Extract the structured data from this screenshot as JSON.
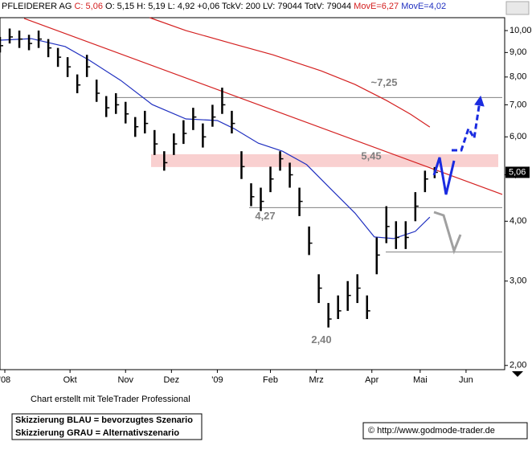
{
  "header": {
    "name": "PFLEIDERER AG",
    "close": "C: 5,06",
    "stats": "O: 5,15 H: 5,19 L: 4,92 +0,06 TckV: 200 LV: 79044 TotV: 79044",
    "ma1": "MovE=6,27",
    "ma2": "MovE=4,02"
  },
  "chart_data": {
    "type": "ohlc",
    "log_scale": true,
    "xlim": [
      0,
      209
    ],
    "ylim": [
      1.96,
      10.64
    ],
    "xticks": [
      {
        "value": 2,
        "label": "'08"
      },
      {
        "value": 29,
        "label": "Okt"
      },
      {
        "value": 52,
        "label": "Nov"
      },
      {
        "value": 71,
        "label": "Dez"
      },
      {
        "value": 90,
        "label": "'09"
      },
      {
        "value": 112,
        "label": "Feb"
      },
      {
        "value": 131,
        "label": "Mrz"
      },
      {
        "value": 154,
        "label": "Apr"
      },
      {
        "value": 174,
        "label": "Mai"
      },
      {
        "value": 193,
        "label": "Jun"
      }
    ],
    "yticks": [
      {
        "value": 2,
        "label": "2,00"
      },
      {
        "value": 3,
        "label": "3,00"
      },
      {
        "value": 4,
        "label": "4,00"
      },
      {
        "value": 5,
        "label": "5,00"
      },
      {
        "value": 6,
        "label": "6,00"
      },
      {
        "value": 7,
        "label": "7,00"
      },
      {
        "value": 8,
        "label": "8,00"
      },
      {
        "value": 9,
        "label": "9,00"
      },
      {
        "value": 10,
        "label": "10,00"
      }
    ],
    "color": "#000000",
    "x": [
      0,
      4,
      8,
      12,
      16,
      20,
      24,
      28,
      32,
      36,
      40,
      44,
      48,
      52,
      56,
      60,
      64,
      68,
      72,
      76,
      80,
      84,
      88,
      92,
      96,
      100,
      104,
      108,
      112,
      116,
      120,
      124,
      128,
      132,
      136,
      140,
      144,
      148,
      152,
      156,
      160,
      164,
      168,
      172,
      176,
      180
    ],
    "high": [
      9.7,
      10.1,
      10.0,
      9.8,
      10.0,
      9.6,
      9.2,
      8.8,
      8.1,
      8.9,
      7.9,
      7.3,
      7.4,
      7.1,
      6.6,
      6.8,
      6.2,
      5.6,
      6.1,
      6.5,
      6.9,
      6.4,
      7.0,
      7.6,
      6.8,
      5.6,
      4.8,
      4.7,
      5.2,
      5.6,
      5.3,
      4.7,
      3.9,
      3.1,
      2.7,
      2.8,
      3.0,
      3.1,
      2.8,
      3.7,
      4.3,
      4.0,
      4.0,
      4.6,
      5.1,
      5.19
    ],
    "low": [
      9.0,
      9.4,
      9.2,
      9.1,
      9.2,
      8.8,
      8.4,
      8.0,
      7.4,
      8.0,
      7.1,
      6.6,
      6.7,
      6.4,
      6.0,
      6.1,
      5.5,
      5.1,
      5.5,
      5.8,
      6.2,
      5.7,
      6.3,
      6.7,
      6.1,
      4.9,
      4.3,
      4.2,
      4.6,
      5.1,
      4.7,
      4.1,
      3.4,
      2.7,
      2.4,
      2.5,
      2.6,
      2.7,
      2.5,
      3.1,
      3.6,
      3.5,
      3.5,
      4.0,
      4.6,
      4.92
    ],
    "close": [
      9.3,
      9.7,
      9.6,
      9.4,
      9.6,
      9.2,
      8.8,
      8.4,
      7.7,
      8.4,
      7.4,
      6.9,
      7.0,
      6.7,
      6.3,
      6.4,
      5.8,
      5.3,
      5.8,
      6.1,
      6.6,
      6.0,
      6.6,
      7.0,
      6.4,
      5.2,
      4.5,
      4.4,
      4.9,
      5.4,
      5.0,
      4.4,
      3.6,
      2.9,
      2.5,
      2.6,
      2.8,
      2.9,
      2.6,
      3.4,
      3.9,
      3.7,
      3.7,
      4.3,
      4.9,
      5.06
    ],
    "series": [
      {
        "color": "#d42020",
        "x": [
          62,
          77,
          97,
          113,
          133,
          147,
          160,
          170,
          178
        ],
        "values": [
          10.64,
          10.0,
          9.37,
          8.9,
          8.24,
          7.72,
          7.15,
          6.69,
          6.29
        ]
      },
      {
        "color": "#2030c0",
        "x": [
          0,
          13,
          27,
          37,
          50,
          63,
          77,
          90,
          97,
          107,
          117,
          127,
          137,
          147,
          155,
          163,
          172,
          178
        ],
        "values": [
          9.55,
          9.62,
          9.26,
          8.67,
          7.87,
          7.01,
          6.54,
          6.49,
          6.24,
          5.82,
          5.6,
          5.25,
          4.67,
          4.16,
          3.71,
          3.68,
          3.81,
          4.08
        ]
      }
    ],
    "trendline": {
      "color": "#d42020",
      "x": [
        10,
        208
      ],
      "values": [
        10.6,
        4.55
      ]
    },
    "levels": [
      7.25,
      4.27,
      3.45
    ],
    "zone": [
      5.19,
      5.52
    ],
    "annotations": [
      {
        "value": 7.25,
        "label": "~7,25"
      },
      {
        "value": 5.45,
        "label": "5,45"
      },
      {
        "value": 4.27,
        "label": "4,27"
      },
      {
        "value": 2.4,
        "label": "2,40"
      }
    ],
    "last_price": {
      "value": 5.06,
      "label": "5,06"
    }
  },
  "footer": {
    "credit": "Chart erstellt mit TeleTrader Professional",
    "legend": [
      "Skizzierung BLAU = bevorzugtes Szenario",
      "Skizzierung GRAU = Alternativszenario"
    ],
    "copyright": "© http://www.godmode-trader.de"
  }
}
